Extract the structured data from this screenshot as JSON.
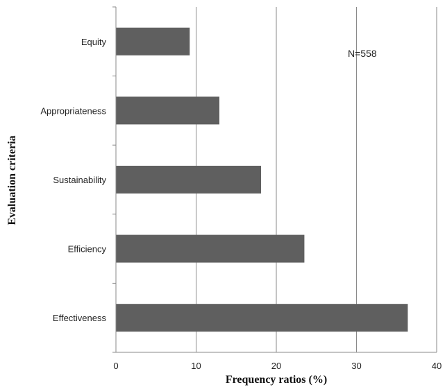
{
  "chart_data": {
    "type": "bar",
    "orientation": "horizontal",
    "categories": [
      "Equity",
      "Appropriateness",
      "Sustainability",
      "Efficiency",
      "Effectiveness"
    ],
    "values": [
      9.2,
      12.9,
      18.1,
      23.5,
      36.4
    ],
    "xlabel": "Frequency ratios (%)",
    "ylabel": "Evaluation criteria",
    "xlim": [
      0,
      40
    ],
    "xticks": [
      0,
      10,
      20,
      30,
      40
    ],
    "annotation": "N=558",
    "grid": "vertical",
    "bar_color": "#5f5f5f"
  }
}
